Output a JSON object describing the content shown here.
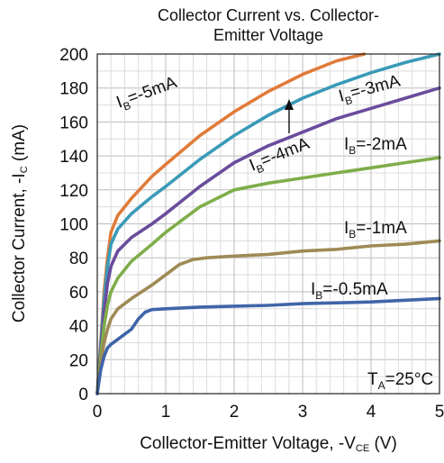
{
  "chart_data": {
    "type": "line",
    "title_line1": "Collector Current vs. Collector-",
    "title_line2": "Emitter Voltage",
    "xlabel_main": "Collector-Emitter Voltage, -V",
    "xlabel_sub": "CE",
    "xlabel_tail": " (V)",
    "ylabel_main": "Collector Current, -I",
    "ylabel_sub": "C",
    "ylabel_tail": " (mA)",
    "xlim": [
      0,
      5
    ],
    "ylim": [
      0,
      200
    ],
    "xticks": [
      "0",
      "1",
      "2",
      "3",
      "4",
      "5"
    ],
    "yticks": [
      "0",
      "20",
      "40",
      "60",
      "80",
      "100",
      "120",
      "140",
      "160",
      "180",
      "200"
    ],
    "grid": true,
    "condition": {
      "main": "T",
      "sub": "A",
      "tail": "=25°C"
    },
    "series": [
      {
        "name": "IB=-5mA",
        "label_main": "I",
        "label_sub": "B",
        "label_tail": "=-5mA",
        "color": "#e07b39",
        "x": [
          0,
          0.05,
          0.1,
          0.15,
          0.2,
          0.3,
          0.5,
          0.8,
          1.0,
          1.5,
          2.0,
          2.5,
          3.0,
          3.5,
          3.9
        ],
        "y": [
          0,
          30,
          60,
          80,
          95,
          105,
          115,
          128,
          135,
          152,
          166,
          178,
          188,
          196,
          200
        ]
      },
      {
        "name": "IB=-4mA",
        "label_main": "I",
        "label_sub": "B",
        "label_tail": "=-4mA",
        "color": "#3a9ab8",
        "x": [
          0,
          0.05,
          0.1,
          0.15,
          0.2,
          0.3,
          0.5,
          0.8,
          1.0,
          1.5,
          2.0,
          2.5,
          3.0,
          3.5,
          4.0,
          4.5,
          5.0
        ],
        "y": [
          0,
          28,
          55,
          75,
          88,
          97,
          106,
          116,
          122,
          138,
          152,
          164,
          174,
          182,
          189,
          195,
          200
        ]
      },
      {
        "name": "IB=-3mA",
        "label_main": "I",
        "label_sub": "B",
        "label_tail": "=-3mA",
        "color": "#6a4c9c",
        "x": [
          0,
          0.05,
          0.1,
          0.15,
          0.2,
          0.3,
          0.5,
          0.8,
          1.0,
          1.5,
          2.0,
          2.5,
          3.0,
          3.5,
          4.0,
          4.5,
          5.0
        ],
        "y": [
          0,
          25,
          48,
          65,
          75,
          84,
          92,
          100,
          106,
          122,
          136,
          146,
          154,
          162,
          168,
          174,
          180
        ]
      },
      {
        "name": "IB=-2mA",
        "label_main": "I",
        "label_sub": "B",
        "label_tail": "=-2mA",
        "color": "#7fae4a",
        "x": [
          0,
          0.05,
          0.1,
          0.15,
          0.2,
          0.3,
          0.5,
          0.8,
          1.0,
          1.5,
          2.0,
          2.5,
          3.0,
          3.5,
          4.0,
          4.5,
          5.0
        ],
        "y": [
          0,
          22,
          40,
          52,
          60,
          68,
          78,
          88,
          95,
          110,
          120,
          124,
          127,
          130,
          133,
          136,
          139
        ]
      },
      {
        "name": "IB=-1mA",
        "label_main": "I",
        "label_sub": "B",
        "label_tail": "=-1mA",
        "color": "#9e8a55",
        "x": [
          0,
          0.05,
          0.1,
          0.15,
          0.2,
          0.3,
          0.5,
          0.8,
          1.0,
          1.2,
          1.4,
          1.6,
          2.0,
          2.5,
          3.0,
          3.5,
          4.0,
          4.5,
          5.0
        ],
        "y": [
          0,
          18,
          30,
          38,
          44,
          50,
          56,
          64,
          70,
          76,
          79,
          80,
          81,
          82,
          84,
          85,
          87,
          88,
          90
        ]
      },
      {
        "name": "IB=-0.5mA",
        "label_main": "I",
        "label_sub": "B",
        "label_tail": "=-0.5mA",
        "color": "#3f65a8",
        "x": [
          0,
          0.05,
          0.1,
          0.15,
          0.2,
          0.3,
          0.5,
          0.6,
          0.7,
          0.8,
          1.0,
          1.5,
          2.0,
          2.5,
          3.0,
          3.5,
          4.0,
          4.5,
          5.0
        ],
        "y": [
          0,
          14,
          22,
          27,
          29,
          32,
          38,
          44,
          48,
          49.5,
          50,
          51,
          51.5,
          52,
          53,
          53.5,
          54,
          55,
          56
        ]
      }
    ]
  }
}
